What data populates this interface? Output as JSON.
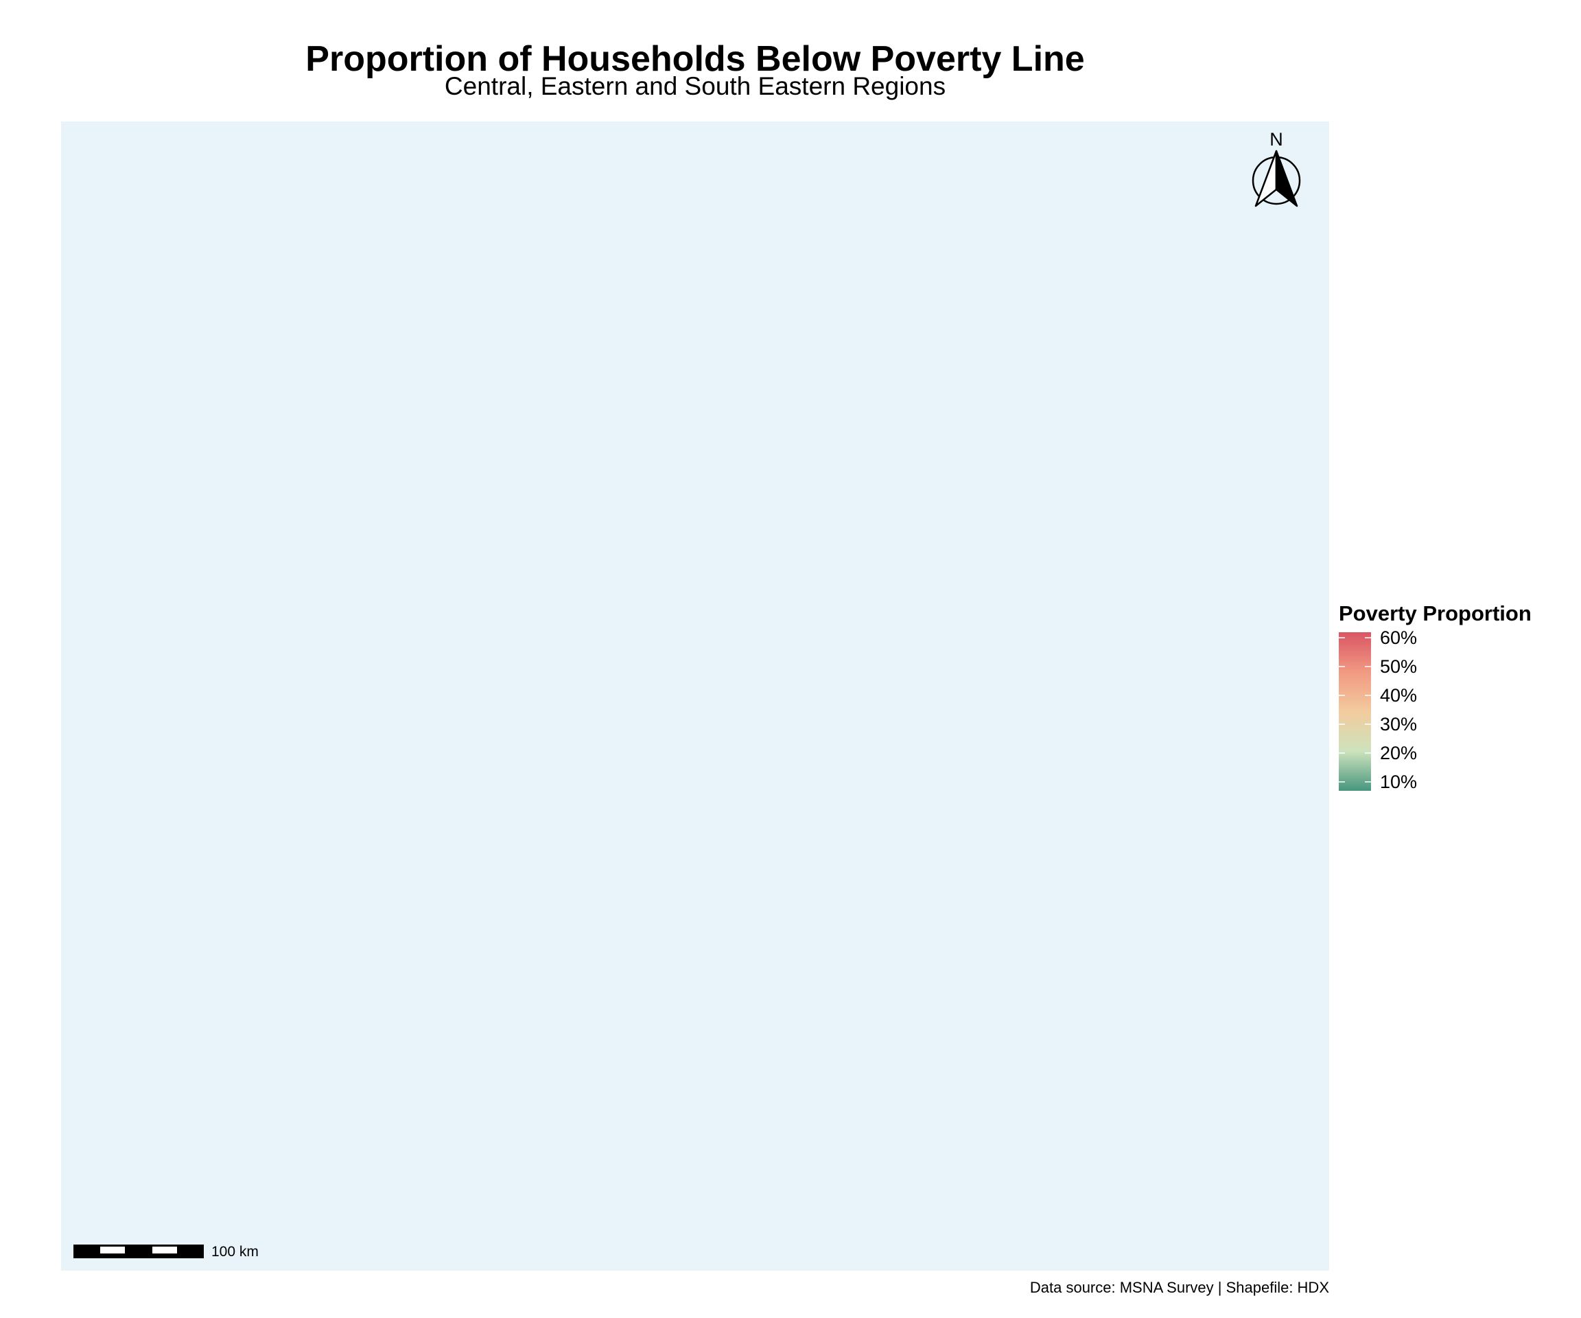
{
  "title": "Proportion of Households Below Poverty Line",
  "subtitle": "Central, Eastern and South Eastern Regions",
  "map": {
    "background_color": "#e8f4f9",
    "north_arrow": {
      "letter": "N",
      "placement": "top-right"
    },
    "scale_bar": {
      "label": "100 km",
      "placement": "bottom-left",
      "segments": 5
    }
  },
  "legend": {
    "title": "Poverty Proportion",
    "placement": "right",
    "color_scale": [
      "#46967f",
      "#cde3bc",
      "#f3cb9e",
      "#f19982",
      "#d95665"
    ],
    "labels": [
      "60%",
      "50%",
      "40%",
      "30%",
      "20%",
      "10%"
    ]
  },
  "caption": "Data source: MSNA Survey | Shapefile: HDX"
}
